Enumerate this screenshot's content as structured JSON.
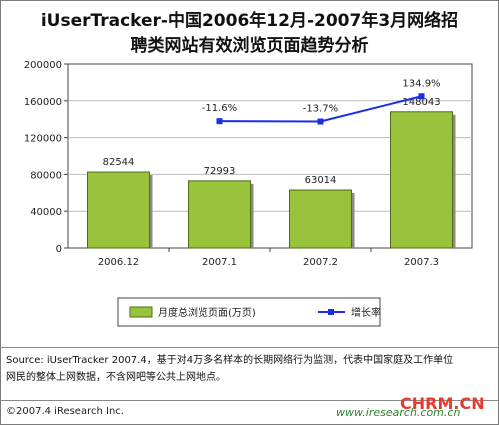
{
  "title_line1": "iUserTracker-中国2006年12月-2007年3月网络招",
  "title_line2": "聘类网站有效浏览页面趋势分析",
  "chart_data": {
    "type": "bar",
    "categories": [
      "2006.12",
      "2007.1",
      "2007.2",
      "2007.3"
    ],
    "series": [
      {
        "name": "月度总浏览页面(万页)",
        "values": [
          82544,
          72993,
          63014,
          148043
        ],
        "color": "#99c33c",
        "type": "bar"
      },
      {
        "name": "增长率",
        "values": [
          null,
          -11.6,
          -13.7,
          134.9
        ],
        "labels": [
          "",
          "-11.6%",
          "-13.7%",
          "134.9%"
        ],
        "color": "#1a2ee8",
        "type": "line"
      }
    ],
    "y_ticks": [
      "0",
      "40000",
      "80000",
      "120000",
      "160000",
      "200000"
    ],
    "ylim": [
      0,
      200000
    ],
    "legend_position": "bottom"
  },
  "footer": {
    "source_line1": "Source:  iUserTracker 2007.4，基于对4万多名样本的长期网络行为监测，代表中国家庭及工作单位",
    "source_line2": "网民的整体上网数据，不含网吧等公共上网地点。",
    "copyright": "©2007.4 iResearch Inc.",
    "url": "www.iresearch.com.cn",
    "watermark": "CHRM.CN"
  }
}
